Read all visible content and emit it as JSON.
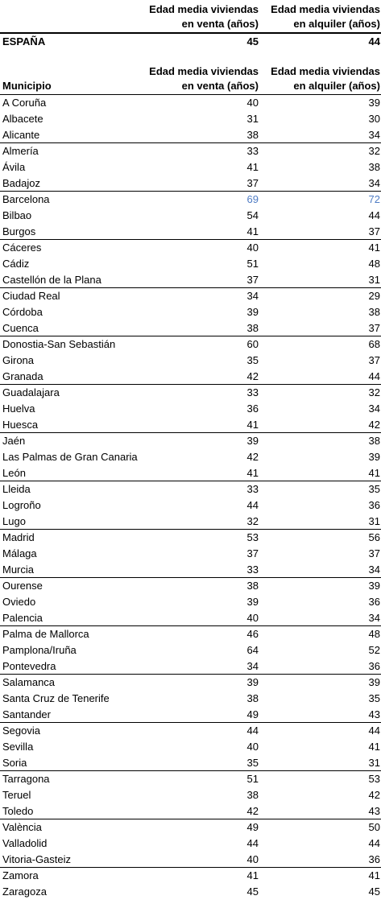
{
  "header": {
    "col_sale": [
      "Edad media viviendas",
      "en venta (años)"
    ],
    "col_rent": [
      "Edad media viviendas",
      "en alquiler (años)"
    ]
  },
  "total": {
    "name": "ESPAÑA",
    "sale": "45",
    "rent": "44"
  },
  "table": {
    "col_municipio": "Municipio",
    "col_sale": [
      "Edad media viviendas",
      "en venta (años)"
    ],
    "col_rent": [
      "Edad media viviendas",
      "en alquiler (años)"
    ]
  },
  "highlight_color": "#4f7cc4",
  "rows": [
    {
      "name": "A Coruña",
      "sale": "40",
      "rent": "39"
    },
    {
      "name": "Albacete",
      "sale": "31",
      "rent": "30"
    },
    {
      "name": "Alicante",
      "sale": "38",
      "rent": "34"
    },
    {
      "name": "Almería",
      "sale": "33",
      "rent": "32"
    },
    {
      "name": "Ávila",
      "sale": "41",
      "rent": "38"
    },
    {
      "name": "Badajoz",
      "sale": "37",
      "rent": "34"
    },
    {
      "name": "Barcelona",
      "sale": "69",
      "rent": "72"
    },
    {
      "name": "Bilbao",
      "sale": "54",
      "rent": "44"
    },
    {
      "name": "Burgos",
      "sale": "41",
      "rent": "37"
    },
    {
      "name": "Cáceres",
      "sale": "40",
      "rent": "41"
    },
    {
      "name": "Cádiz",
      "sale": "51",
      "rent": "48"
    },
    {
      "name": "Castellón de la Plana",
      "sale": "37",
      "rent": "31"
    },
    {
      "name": "Ciudad Real",
      "sale": "34",
      "rent": "29"
    },
    {
      "name": "Córdoba",
      "sale": "39",
      "rent": "38"
    },
    {
      "name": "Cuenca",
      "sale": "38",
      "rent": "37"
    },
    {
      "name": "Donostia-San Sebastián",
      "sale": "60",
      "rent": "68"
    },
    {
      "name": "Girona",
      "sale": "35",
      "rent": "37"
    },
    {
      "name": "Granada",
      "sale": "42",
      "rent": "44"
    },
    {
      "name": "Guadalajara",
      "sale": "33",
      "rent": "32"
    },
    {
      "name": "Huelva",
      "sale": "36",
      "rent": "34"
    },
    {
      "name": "Huesca",
      "sale": "41",
      "rent": "42"
    },
    {
      "name": "Jaén",
      "sale": "39",
      "rent": "38"
    },
    {
      "name": "Las Palmas de Gran Canaria",
      "sale": "42",
      "rent": "39"
    },
    {
      "name": "León",
      "sale": "41",
      "rent": "41"
    },
    {
      "name": "Lleida",
      "sale": "33",
      "rent": "35"
    },
    {
      "name": "Logroño",
      "sale": "44",
      "rent": "36"
    },
    {
      "name": "Lugo",
      "sale": "32",
      "rent": "31"
    },
    {
      "name": "Madrid",
      "sale": "53",
      "rent": "56"
    },
    {
      "name": "Málaga",
      "sale": "37",
      "rent": "37"
    },
    {
      "name": "Murcia",
      "sale": "33",
      "rent": "34"
    },
    {
      "name": "Ourense",
      "sale": "38",
      "rent": "39"
    },
    {
      "name": "Oviedo",
      "sale": "39",
      "rent": "36"
    },
    {
      "name": "Palencia",
      "sale": "40",
      "rent": "34"
    },
    {
      "name": "Palma de Mallorca",
      "sale": "46",
      "rent": "48"
    },
    {
      "name": "Pamplona/Iruña",
      "sale": "64",
      "rent": "52"
    },
    {
      "name": "Pontevedra",
      "sale": "34",
      "rent": "36"
    },
    {
      "name": "Salamanca",
      "sale": "39",
      "rent": "39"
    },
    {
      "name": "Santa Cruz de Tenerife",
      "sale": "38",
      "rent": "35"
    },
    {
      "name": "Santander",
      "sale": "49",
      "rent": "43"
    },
    {
      "name": "Segovia",
      "sale": "44",
      "rent": "44"
    },
    {
      "name": "Sevilla",
      "sale": "40",
      "rent": "41"
    },
    {
      "name": "Soria",
      "sale": "35",
      "rent": "31"
    },
    {
      "name": "Tarragona",
      "sale": "51",
      "rent": "53"
    },
    {
      "name": "Teruel",
      "sale": "38",
      "rent": "42"
    },
    {
      "name": "Toledo",
      "sale": "42",
      "rent": "43"
    },
    {
      "name": "València",
      "sale": "49",
      "rent": "50"
    },
    {
      "name": "Valladolid",
      "sale": "44",
      "rent": "44"
    },
    {
      "name": "Vitoria-Gasteiz",
      "sale": "40",
      "rent": "36"
    },
    {
      "name": "Zamora",
      "sale": "41",
      "rent": "41"
    },
    {
      "name": "Zaragoza",
      "sale": "45",
      "rent": "45"
    }
  ]
}
